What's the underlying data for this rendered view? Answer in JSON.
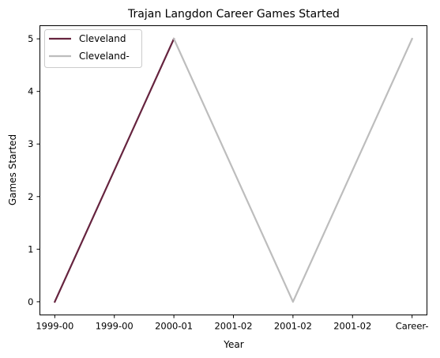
{
  "chart_data": {
    "type": "line",
    "title": "Trajan Langdon Career Games Started",
    "xlabel": "Year",
    "ylabel": "Games Started",
    "x_tick_labels": [
      "1999-00",
      "1999-00",
      "2000-01",
      "2001-02",
      "2001-02",
      "2001-02",
      "Career-"
    ],
    "y_ticks": [
      0,
      1,
      2,
      3,
      4,
      5
    ],
    "ylim": [
      -0.25,
      5.25
    ],
    "xlim": [
      -0.25,
      6.25
    ],
    "grid": false,
    "legend_position": "top-left",
    "series": [
      {
        "name": "Cleveland",
        "color": "#66243f",
        "x": [
          0,
          2
        ],
        "y": [
          0,
          5
        ]
      },
      {
        "name": "Cleveland-",
        "color": "#bdbdbd",
        "x": [
          2,
          4,
          6
        ],
        "y": [
          5,
          0,
          5
        ]
      }
    ]
  }
}
